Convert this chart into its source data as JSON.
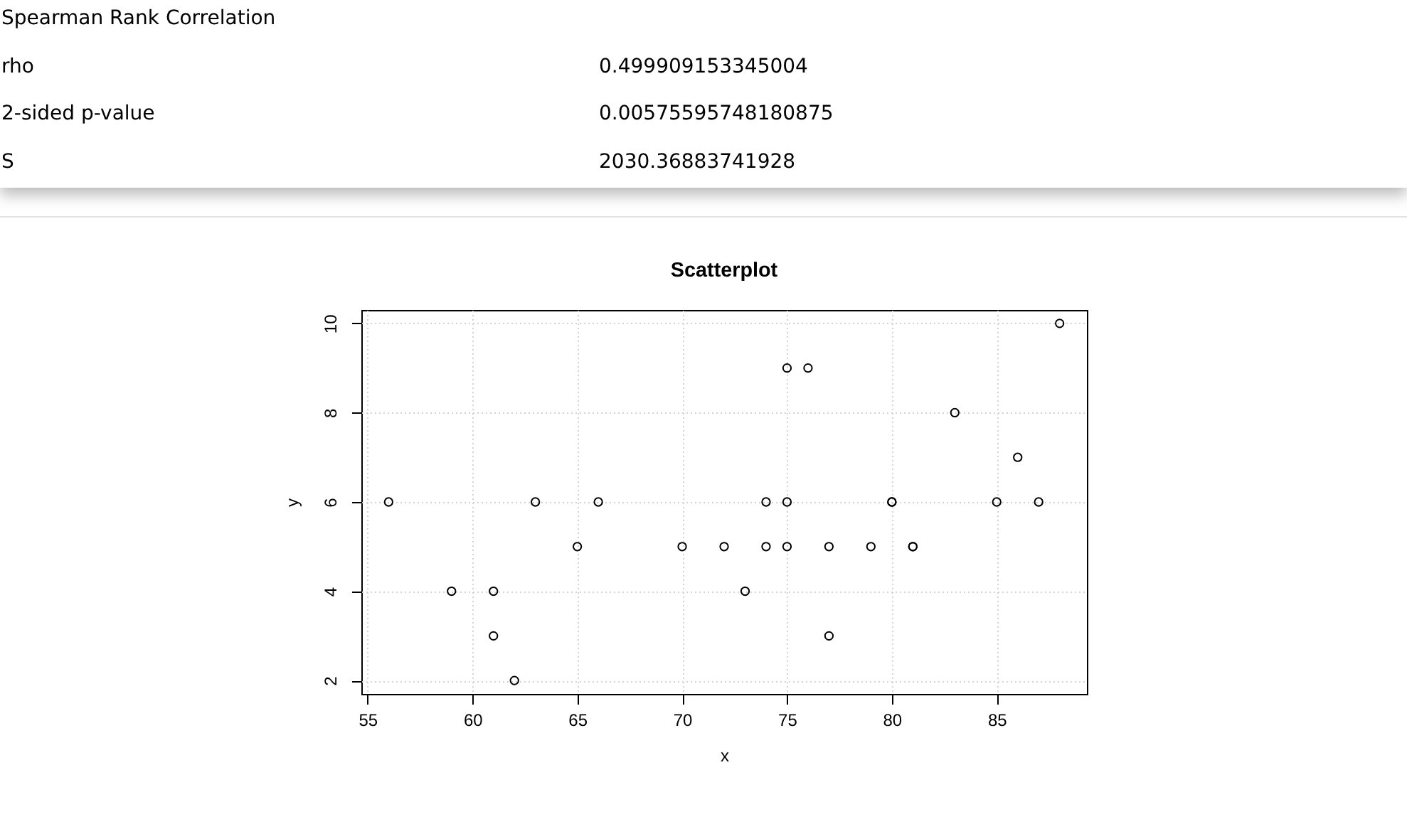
{
  "chart_data": [
    {
      "type": "other",
      "title": "Spearman Rank Correlation",
      "annotations": [
        "rho",
        "0.499909153345004",
        "2-sided p-value",
        "0.00575595748180875",
        "S",
        "2030.36883741928"
      ]
    },
    {
      "type": "scatter",
      "title": "Scatterplot",
      "xlabel": "x",
      "ylabel": "y",
      "x": [
        56,
        59,
        61,
        61,
        62,
        63,
        65,
        66,
        70,
        72,
        73,
        74,
        74,
        75,
        75,
        75,
        76,
        77,
        77,
        79,
        80,
        80,
        81,
        81,
        83,
        85,
        86,
        87,
        88
      ],
      "values": [
        6,
        4,
        4,
        3,
        2,
        6,
        5,
        6,
        5,
        5,
        4,
        6,
        5,
        9,
        6,
        5,
        9,
        5,
        3,
        5,
        6,
        6,
        5,
        5,
        8,
        6,
        7,
        6,
        10
      ],
      "color": "#000000",
      "marker": "circle",
      "grid": true,
      "xlim": [
        54.7,
        89.3
      ],
      "ylim": [
        1.7,
        10.3
      ],
      "xticks": [
        55,
        60,
        65,
        70,
        75,
        80,
        85
      ],
      "yticks": [
        2,
        4,
        6,
        8,
        10
      ]
    }
  ]
}
